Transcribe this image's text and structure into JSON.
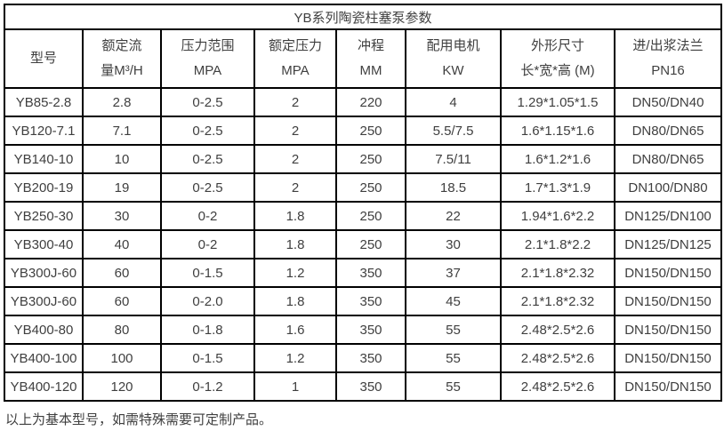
{
  "title": "YB系列陶瓷柱塞泵参数",
  "table": {
    "columns": [
      {
        "line1": "型号",
        "line2": ""
      },
      {
        "line1": "额定流",
        "line2": "量M³/H"
      },
      {
        "line1": "压力范围",
        "line2": "MPA"
      },
      {
        "line1": "额定压力",
        "line2": "MPA"
      },
      {
        "line1": "冲程",
        "line2": "MM"
      },
      {
        "line1": "配用电机",
        "line2": "KW"
      },
      {
        "line1": "外形尺寸",
        "line2": "长*宽*高 (M)"
      },
      {
        "line1": "进/出浆法兰",
        "line2": "PN16"
      }
    ],
    "rows": [
      [
        "YB85-2.8",
        "2.8",
        "0-2.5",
        "2",
        "220",
        "4",
        "1.29*1.05*1.5",
        "DN50/DN40"
      ],
      [
        "YB120-7.1",
        "7.1",
        "0-2.5",
        "2",
        "250",
        "5.5/7.5",
        "1.6*1.15*1.6",
        "DN80/DN65"
      ],
      [
        "YB140-10",
        "10",
        "0-2.5",
        "2",
        "250",
        "7.5/11",
        "1.6*1.2*1.6",
        "DN80/DN65"
      ],
      [
        "YB200-19",
        "19",
        "0-2.5",
        "2",
        "250",
        "18.5",
        "1.7*1.3*1.9",
        "DN100/DN80"
      ],
      [
        "YB250-30",
        "30",
        "0-2",
        "1.8",
        "250",
        "22",
        "1.94*1.6*2.2",
        "DN125/DN100"
      ],
      [
        "YB300-40",
        "40",
        "0-2",
        "1.8",
        "250",
        "30",
        "2.1*1.8*2.2",
        "DN125/DN125"
      ],
      [
        "YB300J-60",
        "60",
        "0-1.5",
        "1.2",
        "350",
        "37",
        "2.1*1.8*2.32",
        "DN150/DN150"
      ],
      [
        "YB300J-60",
        "60",
        "0-2.0",
        "1.8",
        "350",
        "45",
        "2.1*1.8*2.32",
        "DN150/DN150"
      ],
      [
        "YB400-80",
        "80",
        "0-1.8",
        "1.6",
        "350",
        "55",
        "2.48*2.5*2.6",
        "DN150/DN150"
      ],
      [
        "YB400-100",
        "100",
        "0-1.5",
        "1.2",
        "350",
        "55",
        "2.48*2.5*2.6",
        "DN150/DN150"
      ],
      [
        "YB400-120",
        "120",
        "0-1.2",
        "1",
        "350",
        "55",
        "2.48*2.5*2.6",
        "DN150/DN150"
      ]
    ]
  },
  "footer_note": "以上为基本型号，如需特殊需要可定制产品。",
  "colors": {
    "border": "#000000",
    "text": "#3f3f3f",
    "background": "#ffffff"
  }
}
